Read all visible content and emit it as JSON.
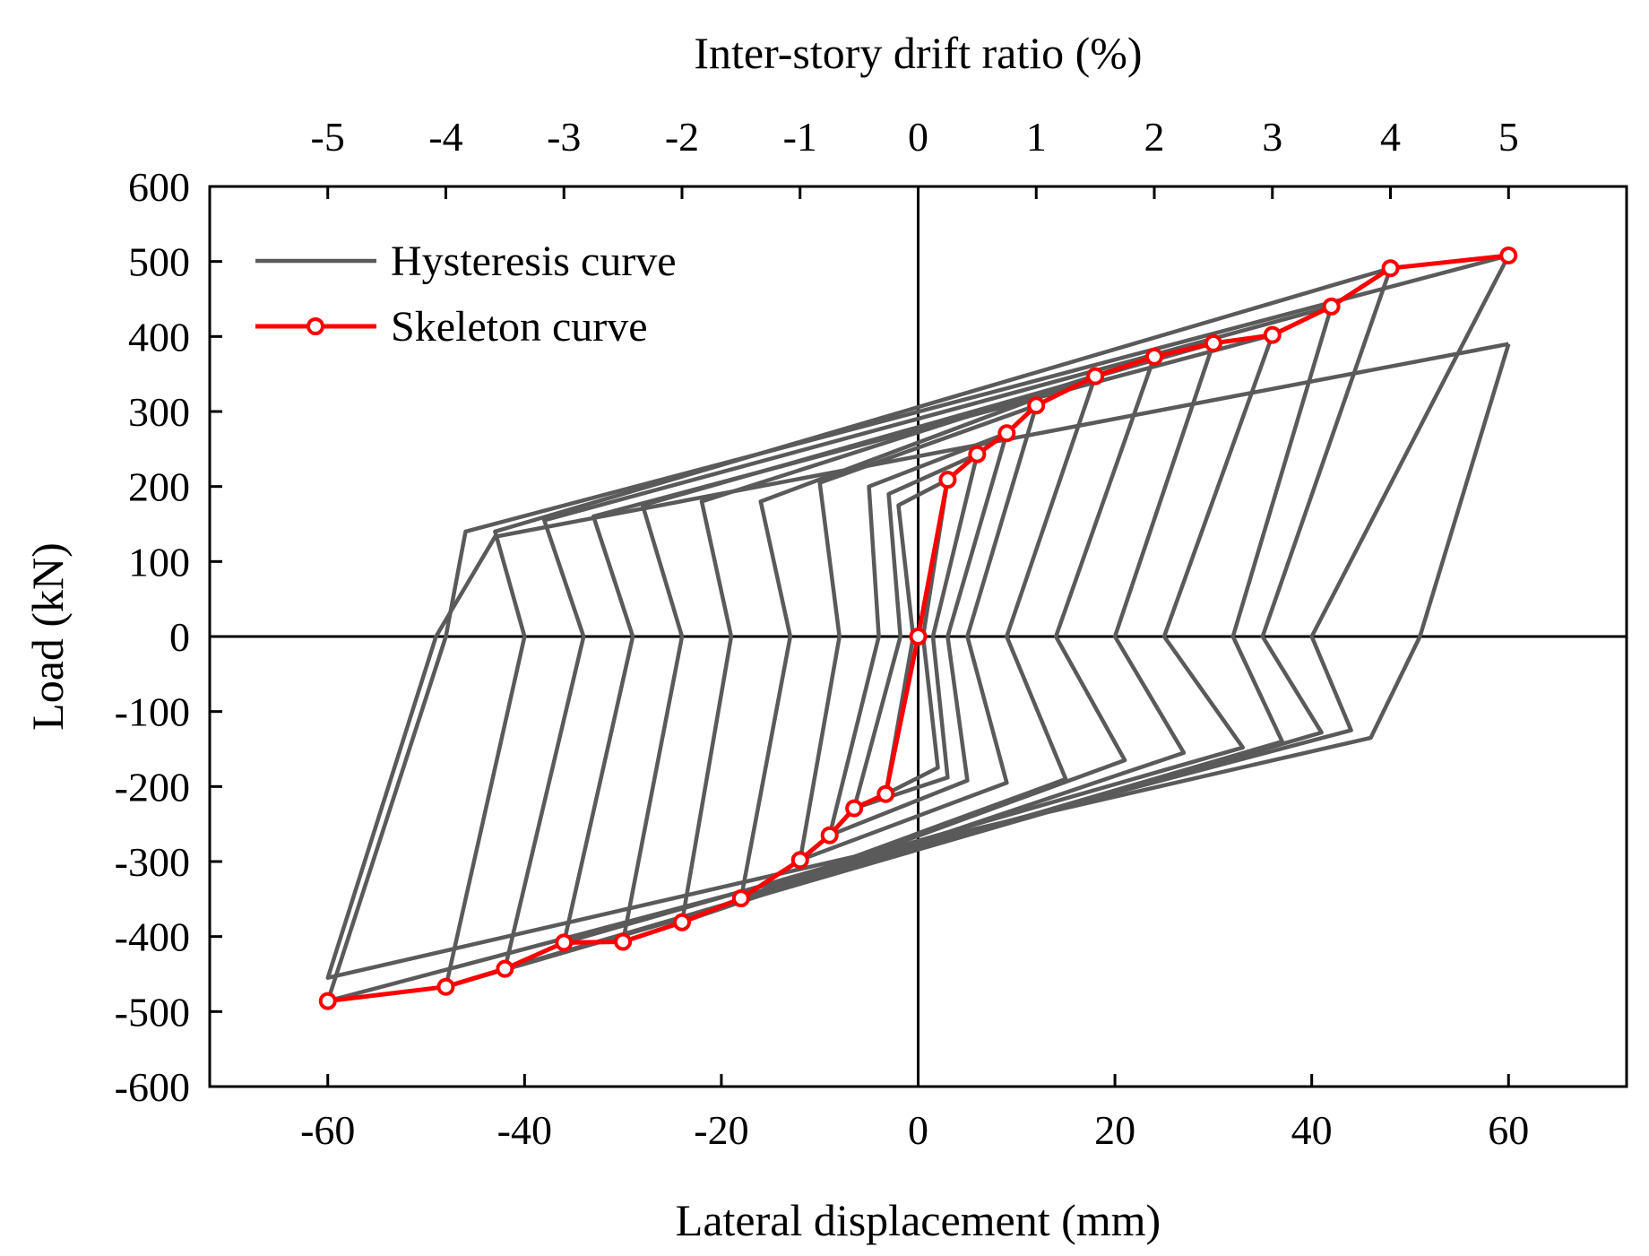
{
  "chart_data": {
    "type": "line",
    "xlabel": "Lateral displacement (mm)",
    "ylabel": "Load (kN)",
    "x2label": "Inter-story drift ratio (%)",
    "xlim": [
      -72,
      72
    ],
    "ylim": [
      -600,
      600
    ],
    "x_ticks": [
      -60,
      -40,
      -20,
      0,
      20,
      40,
      60
    ],
    "y_ticks": [
      600,
      500,
      400,
      300,
      200,
      100,
      0,
      -100,
      -200,
      -300,
      -400,
      -500,
      -600
    ],
    "x2_ticks": [
      -5,
      -4,
      -3,
      -2,
      -1,
      0,
      1,
      2,
      3,
      4,
      5
    ],
    "x2_per_mm": 0.08333,
    "legend": {
      "position": "top-left",
      "entries": [
        "Hysteresis curve",
        "Skeleton curve"
      ]
    },
    "colors": {
      "hysteresis": "#5a5a5a",
      "skeleton": "#ff0000",
      "marker_fill": "#ffffff",
      "axis": "#000000"
    },
    "series": [
      {
        "name": "Skeleton curve",
        "x": [
          -60,
          -48,
          -42,
          -36,
          -30,
          -24,
          -18,
          -12,
          -9,
          -6.5,
          -3.3,
          0,
          3,
          6,
          9,
          12,
          18,
          24,
          30,
          36,
          42,
          48,
          60
        ],
        "y": [
          -486,
          -467,
          -443,
          -408,
          -407,
          -381,
          -349,
          -298,
          -265,
          -229,
          -210,
          0,
          209,
          243,
          271,
          308,
          347,
          373,
          391,
          402,
          440,
          491,
          508
        ]
      },
      {
        "name": "Hysteresis curve",
        "loops": [
          {
            "peak_pos": [
              3,
              209
            ],
            "peak_neg": [
              -3.3,
              -210
            ],
            "zero_pos": 0.5,
            "zero_neg": -0.5,
            "pos_break": [
              -2,
              175
            ],
            "neg_break": [
              2,
              -175
            ]
          },
          {
            "peak_pos": [
              6,
              243
            ],
            "peak_neg": [
              -6.5,
              -229
            ],
            "zero_pos": 1.5,
            "zero_neg": -1.8,
            "pos_break": [
              -3,
              190
            ],
            "neg_break": [
              3,
              -188
            ]
          },
          {
            "peak_pos": [
              9,
              271
            ],
            "peak_neg": [
              -9,
              -265
            ],
            "zero_pos": 3,
            "zero_neg": -4,
            "pos_break": [
              -5,
              200
            ],
            "neg_break": [
              5,
              -192
            ]
          },
          {
            "peak_pos": [
              12,
              308
            ],
            "peak_neg": [
              -12,
              -298
            ],
            "zero_pos": 5,
            "zero_neg": -8,
            "pos_break": [
              -10,
              205
            ],
            "neg_break": [
              9,
              -195
            ]
          },
          {
            "peak_pos": [
              18,
              347
            ],
            "peak_neg": [
              -18,
              -349
            ],
            "zero_pos": 9,
            "zero_neg": -13,
            "pos_break": [
              -16,
              180
            ],
            "neg_break": [
              15,
              -190
            ]
          },
          {
            "peak_pos": [
              24,
              373
            ],
            "peak_neg": [
              -24,
              -381
            ],
            "zero_pos": 14,
            "zero_neg": -19,
            "pos_break": [
              -22,
              180
            ],
            "neg_break": [
              21,
              -165
            ]
          },
          {
            "peak_pos": [
              30,
              391
            ],
            "peak_neg": [
              -30,
              -407
            ],
            "zero_pos": 20,
            "zero_neg": -24,
            "pos_break": [
              -28,
              175
            ],
            "neg_break": [
              27,
              -155
            ]
          },
          {
            "peak_pos": [
              36,
              402
            ],
            "peak_neg": [
              -36,
              -408
            ],
            "zero_pos": 25,
            "zero_neg": -29,
            "pos_break": [
              -33,
              160
            ],
            "neg_break": [
              33,
              -148
            ]
          },
          {
            "peak_pos": [
              42,
              440
            ],
            "peak_neg": [
              -42,
              -443
            ],
            "zero_pos": 32,
            "zero_neg": -34,
            "pos_break": [
              -38,
              155
            ],
            "neg_break": [
              37,
              -140
            ]
          },
          {
            "peak_pos": [
              48,
              491
            ],
            "peak_neg": [
              -48,
              -467
            ],
            "zero_pos": 35,
            "zero_neg": -40,
            "pos_break": [
              -43,
              140
            ],
            "neg_break": [
              41,
              -128
            ]
          },
          {
            "peak_pos": [
              60,
              508
            ],
            "peak_neg": [
              -60,
              -486
            ],
            "zero_pos": 40,
            "zero_neg": -48,
            "pos_break": [
              -46,
              140
            ],
            "neg_break": [
              44,
              -125
            ]
          },
          {
            "peak_pos": [
              60,
              390
            ],
            "peak_neg": [
              -60,
              -455
            ],
            "zero_pos": 51,
            "zero_neg": -49,
            "pos_break": [
              -43,
              133
            ],
            "neg_break": [
              46,
              -135
            ]
          }
        ]
      }
    ]
  }
}
